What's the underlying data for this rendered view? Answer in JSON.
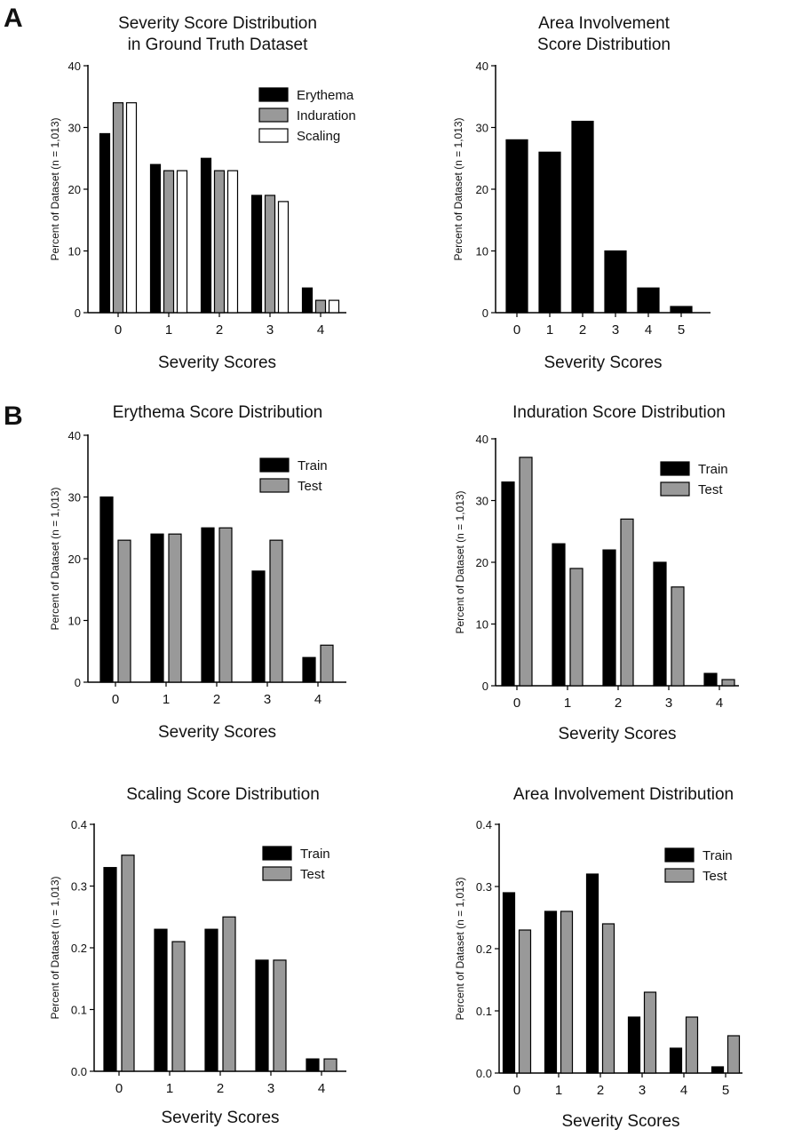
{
  "panels": {
    "a": "A",
    "b": "B"
  },
  "series_styles": {
    "Erythema": "#000000",
    "Induration": "#999999",
    "Scaling": "#ffffff",
    "Train": "#000000",
    "Test": "#999999"
  },
  "chart_data": [
    {
      "type": "bar",
      "title": [
        "Severity Score Distribution",
        "in Ground Truth Dataset"
      ],
      "xlabel": "Severity Scores",
      "ylabel": "Percent of Dataset (n = 1,013)",
      "categories": [
        "0",
        "1",
        "2",
        "3",
        "4"
      ],
      "series": [
        {
          "name": "Erythema",
          "values": [
            29,
            24,
            25,
            19,
            4
          ]
        },
        {
          "name": "Induration",
          "values": [
            34,
            23,
            23,
            19,
            2
          ]
        },
        {
          "name": "Scaling",
          "values": [
            34,
            23,
            23,
            18,
            2
          ]
        }
      ],
      "yticks": [
        "0",
        "10",
        "20",
        "30",
        "40"
      ],
      "ylim": [
        0,
        40
      ],
      "legend": "top-right",
      "grid": false
    },
    {
      "type": "bar",
      "title": [
        "Area Involvement",
        "Score Distribution"
      ],
      "xlabel": "Severity Scores",
      "ylabel": "Percent of Dataset (n = 1,013)",
      "categories": [
        "0",
        "1",
        "2",
        "3",
        "4",
        "5"
      ],
      "series": [
        {
          "values": [
            28,
            26,
            31,
            10,
            4,
            1
          ]
        }
      ],
      "yticks": [
        "0",
        "10",
        "20",
        "30",
        "40"
      ],
      "ylim": [
        0,
        40
      ],
      "grid": false
    },
    {
      "type": "bar",
      "title": [
        "Erythema Score Distribution"
      ],
      "xlabel": "Severity Scores",
      "ylabel": "Percent of Dataset (n = 1,013)",
      "categories": [
        "0",
        "1",
        "2",
        "3",
        "4"
      ],
      "series": [
        {
          "name": "Train",
          "values": [
            30,
            24,
            25,
            18,
            4
          ]
        },
        {
          "name": "Test",
          "values": [
            23,
            24,
            25,
            23,
            6
          ]
        }
      ],
      "yticks": [
        "0",
        "10",
        "20",
        "30",
        "40"
      ],
      "ylim": [
        0,
        40
      ],
      "legend": "top-right",
      "grid": false
    },
    {
      "type": "bar",
      "title": [
        "Induration Score Distribution"
      ],
      "xlabel": "Severity Scores",
      "ylabel": "Percent of Dataset (n = 1,013)",
      "categories": [
        "0",
        "1",
        "2",
        "3",
        "4"
      ],
      "series": [
        {
          "name": "Train",
          "values": [
            33,
            23,
            22,
            20,
            2
          ]
        },
        {
          "name": "Test",
          "values": [
            37,
            19,
            27,
            16,
            1
          ]
        }
      ],
      "yticks": [
        "0",
        "10",
        "20",
        "30",
        "40"
      ],
      "ylim": [
        0,
        40
      ],
      "legend": "top-right",
      "grid": false
    },
    {
      "type": "bar",
      "title": [
        "Scaling Score Distribution"
      ],
      "xlabel": "Severity Scores",
      "ylabel": "Percent of Dataset (n = 1,013)",
      "categories": [
        "0",
        "1",
        "2",
        "3",
        "4"
      ],
      "series": [
        {
          "name": "Train",
          "values": [
            0.33,
            0.23,
            0.23,
            0.18,
            0.02
          ]
        },
        {
          "name": "Test",
          "values": [
            0.35,
            0.21,
            0.25,
            0.18,
            0.02
          ]
        }
      ],
      "yticks": [
        "0.0",
        "0.1",
        "0.2",
        "0.3",
        "0.4"
      ],
      "ylim": [
        0,
        0.4
      ],
      "legend": "top-right",
      "grid": false
    },
    {
      "type": "bar",
      "title": [
        "Area Involvement Distribution"
      ],
      "xlabel": "Severity Scores",
      "ylabel": "Percent of Dataset (n = 1,013)",
      "categories": [
        "0",
        "1",
        "2",
        "3",
        "4",
        "5"
      ],
      "series": [
        {
          "name": "Train",
          "values": [
            0.29,
            0.26,
            0.32,
            0.09,
            0.04,
            0.01
          ]
        },
        {
          "name": "Test",
          "values": [
            0.23,
            0.26,
            0.24,
            0.13,
            0.09,
            0.06
          ]
        }
      ],
      "yticks": [
        "0.0",
        "0.1",
        "0.2",
        "0.3",
        "0.4"
      ],
      "ylim": [
        0,
        0.4
      ],
      "legend": "top-right",
      "grid": false
    }
  ]
}
